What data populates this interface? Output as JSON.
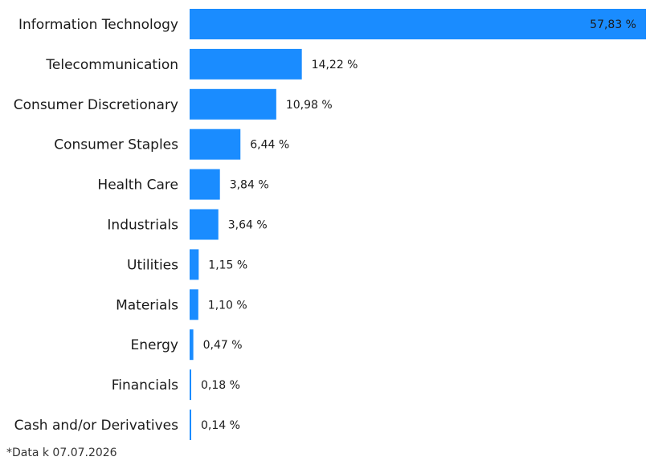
{
  "chart_data": {
    "type": "bar",
    "orientation": "horizontal",
    "categories": [
      "Information Technology",
      "Telecommunication",
      "Consumer Discretionary",
      "Consumer Staples",
      "Health Care",
      "Industrials",
      "Utilities",
      "Materials",
      "Energy",
      "Financials",
      "Cash and/or Derivatives"
    ],
    "values": [
      57.83,
      14.22,
      10.98,
      6.44,
      3.84,
      3.64,
      1.15,
      1.1,
      0.47,
      0.18,
      0.14
    ],
    "value_labels": [
      "57,83 %",
      "14,22 %",
      "10,98 %",
      "6,44 %",
      "3,84 %",
      "3,64 %",
      "1,15 %",
      "1,10 %",
      "0,47 %",
      "0,18 %",
      "0,14 %"
    ],
    "bar_color": "#1a8cff",
    "grid": false,
    "legend": "none"
  },
  "footnote": "*Data k 07.07.2026"
}
